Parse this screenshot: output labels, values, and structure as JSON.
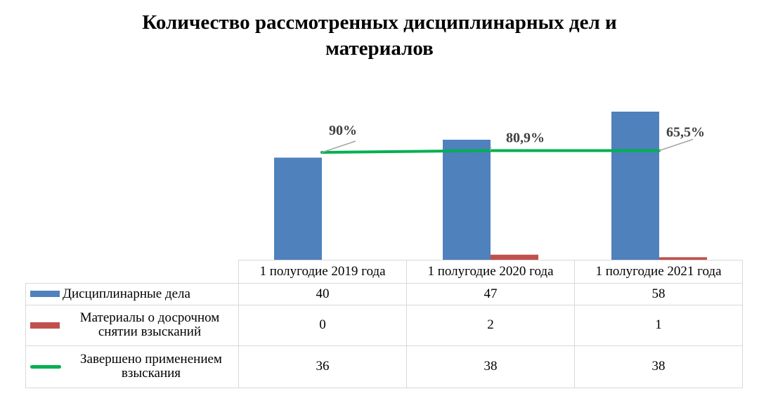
{
  "title_line1": "Количество рассмотренных дисциплинарных дел и",
  "title_line2": "материалов",
  "chart_data": {
    "type": "bar",
    "title": "Количество рассмотренных дисциплинарных дел и материалов",
    "categories": [
      "1 полугодие 2019 года",
      "1 полугодие 2020 года",
      "1 полугодие 2021 года"
    ],
    "series": [
      {
        "name": "Дисциплинарные дела",
        "type": "bar",
        "values": [
          40,
          47,
          58
        ],
        "color": "#4f81bd"
      },
      {
        "name": "Материалы о досрочном снятии взысканий",
        "type": "bar",
        "values": [
          0,
          2,
          1
        ],
        "color": "#c0504d"
      },
      {
        "name": "Завершено применением взыскания",
        "type": "line",
        "values": [
          36,
          38,
          38
        ],
        "color": "#00b050"
      }
    ],
    "line_labels": [
      "90%",
      "80,9%",
      "65,5%"
    ],
    "ylim": [
      0,
      60
    ],
    "grid": false,
    "legend": "data table"
  },
  "table": {
    "row_labels": [
      "Дисциплинарные дела",
      "Материалы о досрочном снятии взысканий",
      "Завершено применением взыскания"
    ]
  }
}
